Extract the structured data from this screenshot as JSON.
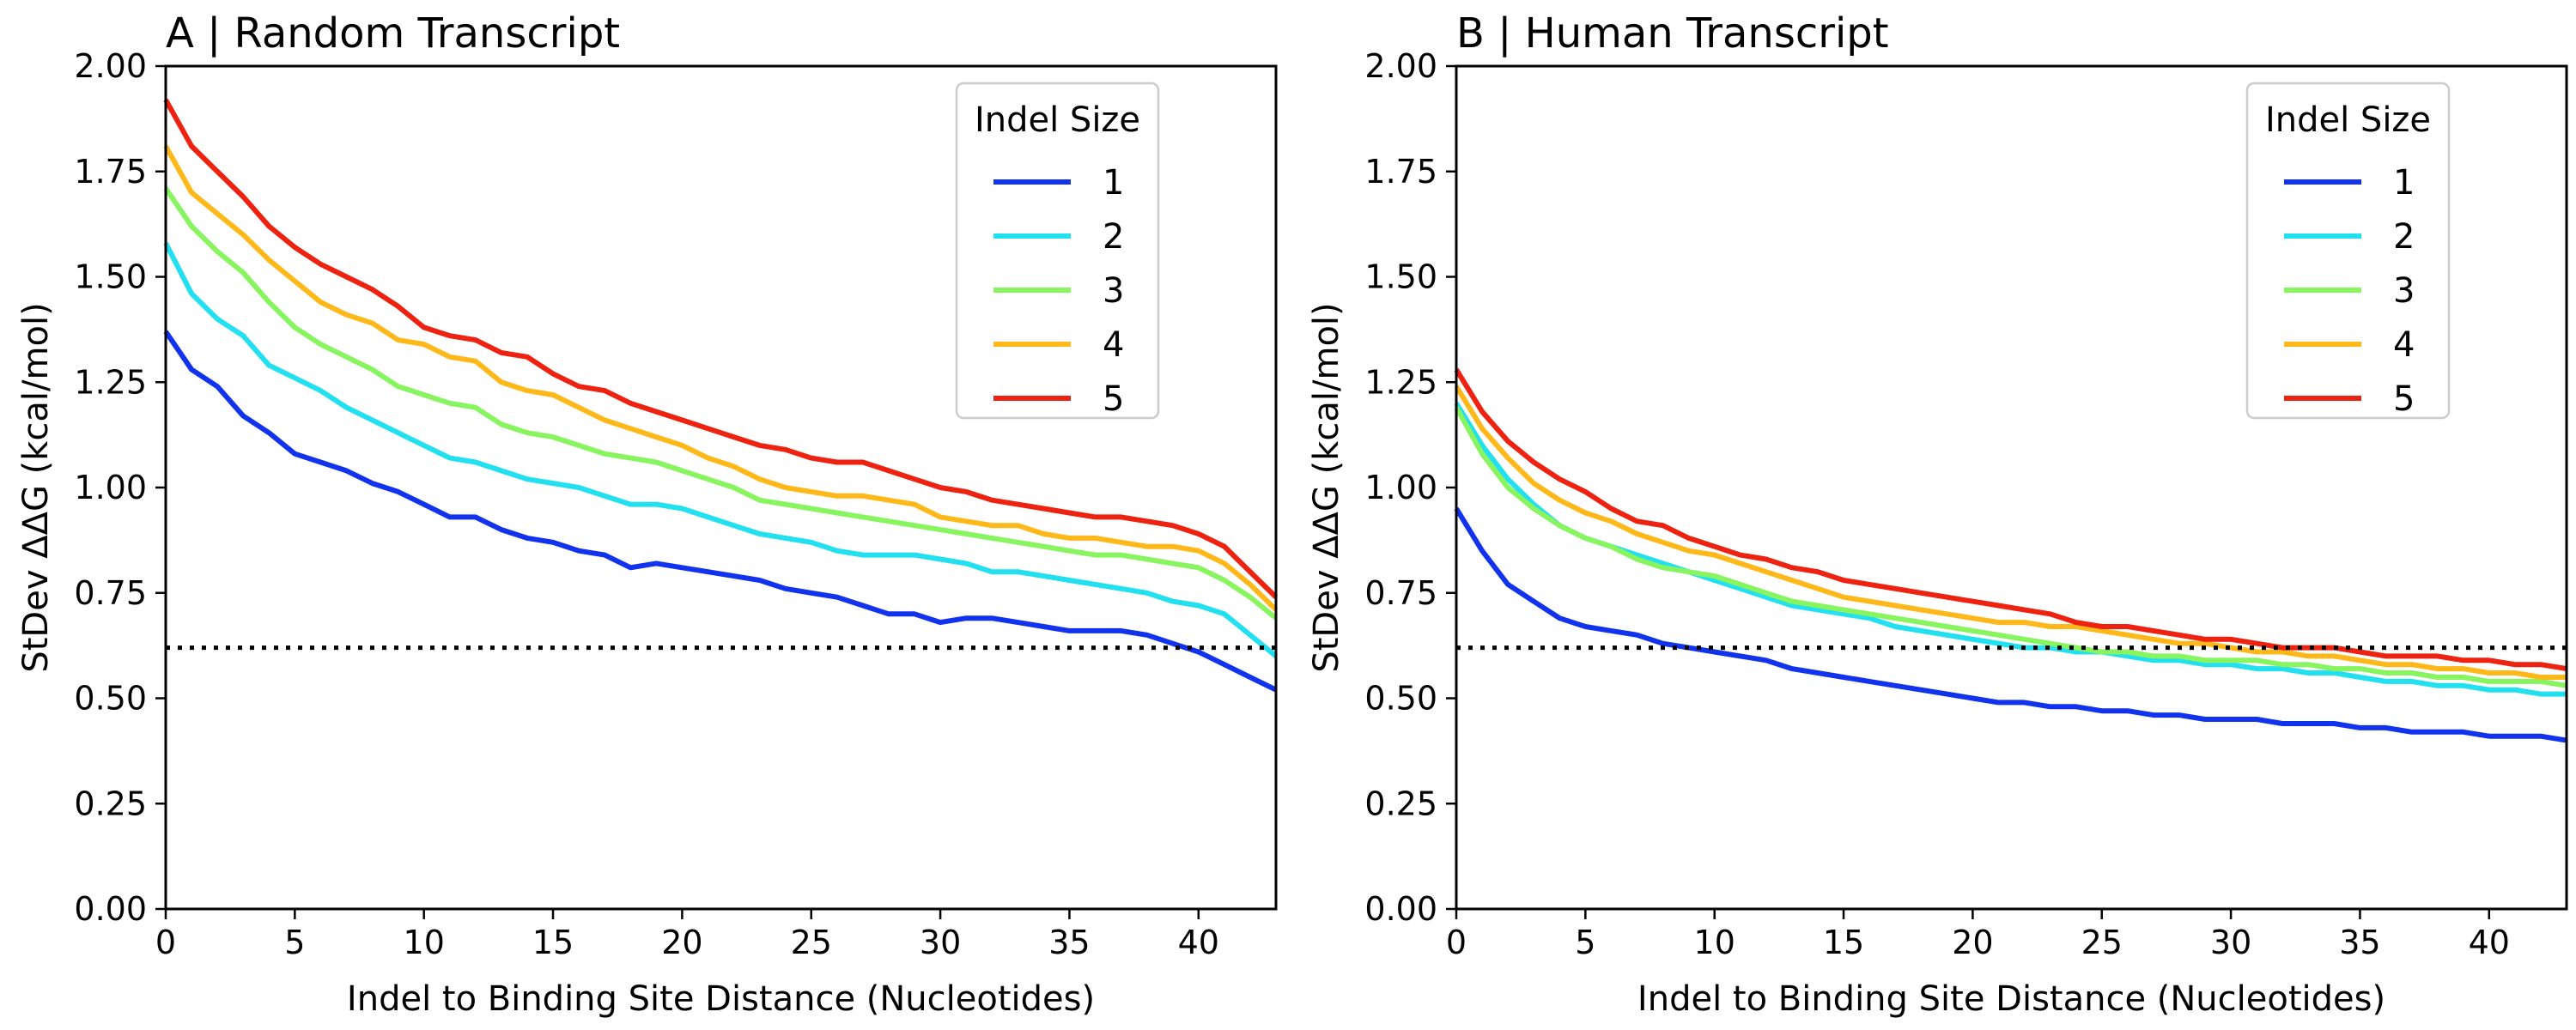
{
  "chart_data": [
    {
      "type": "line",
      "title": "A | Random Transcript",
      "xlabel": "Indel to Binding Site Distance (Nucleotides)",
      "ylabel": "StDev ΔΔG (kcal/mol)",
      "xlim": [
        0,
        43
      ],
      "ylim": [
        0,
        2.0
      ],
      "xticks": [
        "0",
        "5",
        "10",
        "15",
        "20",
        "25",
        "30",
        "35",
        "40"
      ],
      "yticks": [
        "0.00",
        "0.25",
        "0.50",
        "0.75",
        "1.00",
        "1.25",
        "1.50",
        "1.75",
        "2.00"
      ],
      "grid": false,
      "legend": {
        "title": "Indel Size",
        "placement": "top-right"
      },
      "reference_line": {
        "y": 0.62,
        "style": "dotted",
        "color": "#000000"
      },
      "x": [
        0,
        1,
        2,
        3,
        4,
        5,
        6,
        7,
        8,
        9,
        10,
        11,
        12,
        13,
        14,
        15,
        16,
        17,
        18,
        19,
        20,
        21,
        22,
        23,
        24,
        25,
        26,
        27,
        28,
        29,
        30,
        31,
        32,
        33,
        34,
        35,
        36,
        37,
        38,
        39,
        40,
        41,
        42,
        43
      ],
      "series": [
        {
          "name": "1",
          "color": "#1133ee",
          "values": [
            1.37,
            1.28,
            1.24,
            1.17,
            1.13,
            1.08,
            1.06,
            1.04,
            1.01,
            0.99,
            0.96,
            0.93,
            0.93,
            0.9,
            0.88,
            0.87,
            0.85,
            0.84,
            0.81,
            0.82,
            0.81,
            0.8,
            0.79,
            0.78,
            0.76,
            0.75,
            0.74,
            0.72,
            0.7,
            0.7,
            0.68,
            0.69,
            0.69,
            0.68,
            0.67,
            0.66,
            0.66,
            0.66,
            0.65,
            0.63,
            0.61,
            0.58,
            0.55,
            0.52
          ]
        },
        {
          "name": "2",
          "color": "#22e0f0",
          "values": [
            1.58,
            1.46,
            1.4,
            1.36,
            1.29,
            1.26,
            1.23,
            1.19,
            1.16,
            1.13,
            1.1,
            1.07,
            1.06,
            1.04,
            1.02,
            1.01,
            1.0,
            0.98,
            0.96,
            0.96,
            0.95,
            0.93,
            0.91,
            0.89,
            0.88,
            0.87,
            0.85,
            0.84,
            0.84,
            0.84,
            0.83,
            0.82,
            0.8,
            0.8,
            0.79,
            0.78,
            0.77,
            0.76,
            0.75,
            0.73,
            0.72,
            0.7,
            0.65,
            0.6
          ]
        },
        {
          "name": "3",
          "color": "#88f560",
          "values": [
            1.71,
            1.62,
            1.56,
            1.51,
            1.44,
            1.38,
            1.34,
            1.31,
            1.28,
            1.24,
            1.22,
            1.2,
            1.19,
            1.15,
            1.13,
            1.12,
            1.1,
            1.08,
            1.07,
            1.06,
            1.04,
            1.02,
            1.0,
            0.97,
            0.96,
            0.95,
            0.94,
            0.93,
            0.92,
            0.91,
            0.9,
            0.89,
            0.88,
            0.87,
            0.86,
            0.85,
            0.84,
            0.84,
            0.83,
            0.82,
            0.81,
            0.78,
            0.74,
            0.69
          ]
        },
        {
          "name": "4",
          "color": "#ffb81a",
          "values": [
            1.81,
            1.7,
            1.65,
            1.6,
            1.54,
            1.49,
            1.44,
            1.41,
            1.39,
            1.35,
            1.34,
            1.31,
            1.3,
            1.25,
            1.23,
            1.22,
            1.19,
            1.16,
            1.14,
            1.12,
            1.1,
            1.07,
            1.05,
            1.02,
            1.0,
            0.99,
            0.98,
            0.98,
            0.97,
            0.96,
            0.93,
            0.92,
            0.91,
            0.91,
            0.89,
            0.88,
            0.88,
            0.87,
            0.86,
            0.86,
            0.85,
            0.82,
            0.77,
            0.71
          ]
        },
        {
          "name": "5",
          "color": "#ee2211",
          "values": [
            1.92,
            1.81,
            1.75,
            1.69,
            1.62,
            1.57,
            1.53,
            1.5,
            1.47,
            1.43,
            1.38,
            1.36,
            1.35,
            1.32,
            1.31,
            1.27,
            1.24,
            1.23,
            1.2,
            1.18,
            1.16,
            1.14,
            1.12,
            1.1,
            1.09,
            1.07,
            1.06,
            1.06,
            1.04,
            1.02,
            1.0,
            0.99,
            0.97,
            0.96,
            0.95,
            0.94,
            0.93,
            0.93,
            0.92,
            0.91,
            0.89,
            0.86,
            0.8,
            0.74
          ]
        }
      ]
    },
    {
      "type": "line",
      "title": "B | Human Transcript",
      "xlabel": "Indel to Binding Site Distance (Nucleotides)",
      "ylabel": "StDev ΔΔG (kcal/mol)",
      "xlim": [
        0,
        43
      ],
      "ylim": [
        0,
        2.0
      ],
      "xticks": [
        "0",
        "5",
        "10",
        "15",
        "20",
        "25",
        "30",
        "35",
        "40"
      ],
      "yticks": [
        "0.00",
        "0.25",
        "0.50",
        "0.75",
        "1.00",
        "1.25",
        "1.50",
        "1.75",
        "2.00"
      ],
      "grid": false,
      "legend": {
        "title": "Indel Size",
        "placement": "top-right"
      },
      "reference_line": {
        "y": 0.62,
        "style": "dotted",
        "color": "#000000"
      },
      "x": [
        0,
        1,
        2,
        3,
        4,
        5,
        6,
        7,
        8,
        9,
        10,
        11,
        12,
        13,
        14,
        15,
        16,
        17,
        18,
        19,
        20,
        21,
        22,
        23,
        24,
        25,
        26,
        27,
        28,
        29,
        30,
        31,
        32,
        33,
        34,
        35,
        36,
        37,
        38,
        39,
        40,
        41,
        42,
        43
      ],
      "series": [
        {
          "name": "1",
          "color": "#1133ee",
          "values": [
            0.95,
            0.85,
            0.77,
            0.73,
            0.69,
            0.67,
            0.66,
            0.65,
            0.63,
            0.62,
            0.61,
            0.6,
            0.59,
            0.57,
            0.56,
            0.55,
            0.54,
            0.53,
            0.52,
            0.51,
            0.5,
            0.49,
            0.49,
            0.48,
            0.48,
            0.47,
            0.47,
            0.46,
            0.46,
            0.45,
            0.45,
            0.45,
            0.44,
            0.44,
            0.44,
            0.43,
            0.43,
            0.42,
            0.42,
            0.42,
            0.41,
            0.41,
            0.41,
            0.4
          ]
        },
        {
          "name": "2",
          "color": "#22e0f0",
          "values": [
            1.2,
            1.1,
            1.02,
            0.96,
            0.91,
            0.88,
            0.86,
            0.84,
            0.82,
            0.8,
            0.78,
            0.76,
            0.74,
            0.72,
            0.71,
            0.7,
            0.69,
            0.67,
            0.66,
            0.65,
            0.64,
            0.63,
            0.62,
            0.62,
            0.61,
            0.61,
            0.6,
            0.59,
            0.59,
            0.58,
            0.58,
            0.57,
            0.57,
            0.56,
            0.56,
            0.55,
            0.54,
            0.54,
            0.53,
            0.53,
            0.52,
            0.52,
            0.51,
            0.51
          ]
        },
        {
          "name": "3",
          "color": "#88f560",
          "values": [
            1.19,
            1.08,
            1.0,
            0.95,
            0.91,
            0.88,
            0.86,
            0.83,
            0.81,
            0.8,
            0.79,
            0.77,
            0.75,
            0.73,
            0.72,
            0.71,
            0.7,
            0.69,
            0.68,
            0.67,
            0.66,
            0.65,
            0.64,
            0.63,
            0.62,
            0.61,
            0.61,
            0.6,
            0.6,
            0.59,
            0.59,
            0.59,
            0.58,
            0.58,
            0.57,
            0.57,
            0.56,
            0.56,
            0.55,
            0.55,
            0.54,
            0.54,
            0.54,
            0.53
          ]
        },
        {
          "name": "4",
          "color": "#ffb81a",
          "values": [
            1.24,
            1.14,
            1.07,
            1.01,
            0.97,
            0.94,
            0.92,
            0.89,
            0.87,
            0.85,
            0.84,
            0.82,
            0.8,
            0.78,
            0.76,
            0.74,
            0.73,
            0.72,
            0.71,
            0.7,
            0.69,
            0.68,
            0.68,
            0.67,
            0.67,
            0.66,
            0.65,
            0.64,
            0.63,
            0.63,
            0.62,
            0.61,
            0.61,
            0.6,
            0.6,
            0.59,
            0.58,
            0.58,
            0.57,
            0.57,
            0.56,
            0.56,
            0.55,
            0.55
          ]
        },
        {
          "name": "5",
          "color": "#ee2211",
          "values": [
            1.28,
            1.18,
            1.11,
            1.06,
            1.02,
            0.99,
            0.95,
            0.92,
            0.91,
            0.88,
            0.86,
            0.84,
            0.83,
            0.81,
            0.8,
            0.78,
            0.77,
            0.76,
            0.75,
            0.74,
            0.73,
            0.72,
            0.71,
            0.7,
            0.68,
            0.67,
            0.67,
            0.66,
            0.65,
            0.64,
            0.64,
            0.63,
            0.62,
            0.62,
            0.62,
            0.61,
            0.6,
            0.6,
            0.6,
            0.59,
            0.59,
            0.58,
            0.58,
            0.57
          ]
        }
      ]
    }
  ]
}
